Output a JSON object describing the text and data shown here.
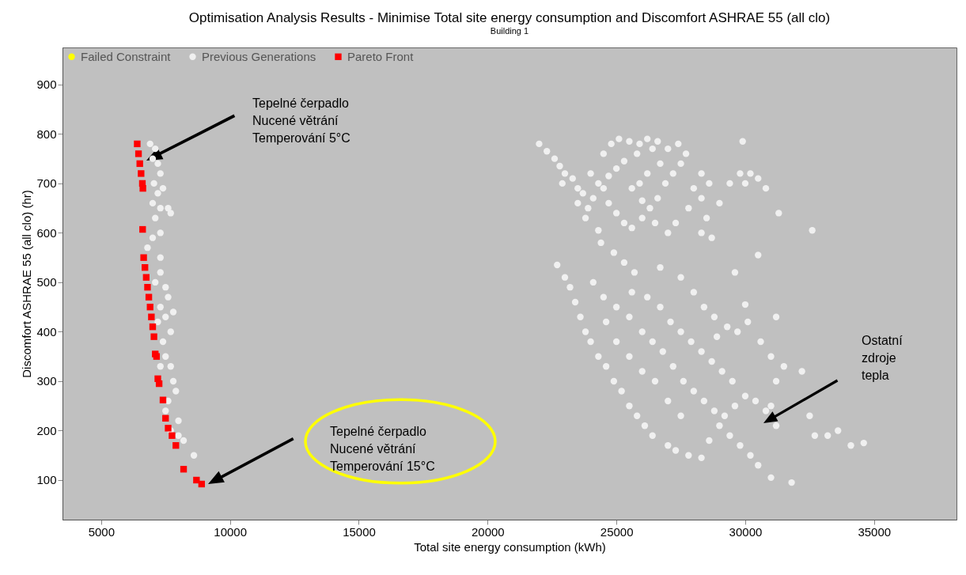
{
  "chart_data": {
    "type": "scatter",
    "title": "Optimisation Analysis Results - Minimise Total site energy consumption and Discomfort ASHRAE 55 (all clo)",
    "subtitle": "Building 1",
    "xlabel": "Total site energy consumption (kWh)",
    "ylabel": "Discomfort ASHRAE 55 (all clo) (hr)",
    "xlim": [
      3500,
      38200
    ],
    "ylim": [
      20,
      975
    ],
    "xticks": [
      5000,
      10000,
      15000,
      20000,
      25000,
      30000,
      35000
    ],
    "yticks": [
      100,
      200,
      300,
      400,
      500,
      600,
      700,
      800,
      900
    ],
    "grid": false,
    "legend": "top left",
    "series": [
      {
        "name": "Failed Constraint",
        "color": "#ffff00",
        "marker": "circle"
      },
      {
        "name": "Previous Generations",
        "color": "#f0f0f0",
        "marker": "circle",
        "x": [
          6900,
          7100,
          7000,
          7200,
          7300,
          7050,
          7200,
          7400,
          7000,
          7300,
          7600,
          7700,
          7100,
          7300,
          7000,
          6800,
          7300,
          7100,
          7300,
          7500,
          7600,
          7800,
          7500,
          7300,
          7700,
          7400,
          7500,
          7700,
          7800,
          7900,
          7600,
          7500,
          8000,
          8200,
          8000,
          8600,
          7700,
          7200,
          7300,
          22000,
          22300,
          22600,
          22800,
          23000,
          22900,
          23300,
          23500,
          23700,
          23500,
          23900,
          24100,
          24300,
          24000,
          24500,
          24800,
          25100,
          25500,
          25900,
          26200,
          26600,
          26400,
          25800,
          25300,
          25000,
          24700,
          24500,
          24700,
          25000,
          25300,
          25600,
          26000,
          26300,
          26600,
          26900,
          27200,
          27500,
          27700,
          27400,
          27000,
          26700,
          26200,
          25900,
          25600,
          26000,
          26500,
          27000,
          27300,
          27800,
          28000,
          28300,
          28600,
          28300,
          28500,
          28300,
          28700,
          29000,
          29400,
          29800,
          30000,
          30200,
          30500,
          30800,
          29900,
          31300,
          32600,
          30500,
          23800,
          24300,
          22700,
          23000,
          23200,
          23400,
          23600,
          23800,
          24000,
          24300,
          24600,
          24900,
          25200,
          25500,
          25800,
          26100,
          26400,
          27000,
          27300,
          27800,
          28300,
          28600,
          29000,
          29400,
          29800,
          30200,
          30500,
          31000,
          31800,
          24400,
          24900,
          25300,
          25700,
          24100,
          24500,
          25000,
          25500,
          26000,
          26400,
          26800,
          27200,
          27600,
          28000,
          28400,
          28800,
          29200,
          29600,
          30000,
          30400,
          30800,
          31200,
          25600,
          26200,
          26700,
          27100,
          27500,
          27900,
          28300,
          28700,
          29100,
          29500,
          26700,
          27500,
          28000,
          28400,
          28800,
          29300,
          29700,
          30100,
          30600,
          31000,
          31500,
          32200,
          32500,
          32700,
          33200,
          33600,
          34100,
          34600,
          31200,
          30000,
          31200,
          31000,
          29600,
          28900,
          26500,
          27000,
          27500,
          26000,
          25500,
          25000,
          24600
        ],
        "values": [
          780,
          770,
          750,
          740,
          720,
          700,
          680,
          690,
          660,
          650,
          650,
          640,
          630,
          600,
          590,
          570,
          550,
          500,
          520,
          490,
          470,
          440,
          430,
          450,
          400,
          380,
          350,
          330,
          300,
          280,
          260,
          240,
          220,
          180,
          190,
          150,
          200,
          420,
          330,
          780,
          765,
          750,
          735,
          720,
          700,
          710,
          690,
          680,
          660,
          650,
          670,
          700,
          720,
          760,
          780,
          790,
          785,
          780,
          790,
          785,
          770,
          760,
          745,
          730,
          715,
          690,
          660,
          640,
          620,
          610,
          630,
          650,
          670,
          700,
          720,
          740,
          760,
          780,
          770,
          740,
          720,
          700,
          690,
          665,
          620,
          600,
          620,
          650,
          690,
          720,
          700,
          670,
          630,
          600,
          590,
          660,
          700,
          720,
          700,
          720,
          710,
          690,
          785,
          640,
          605,
          555,
          630,
          605,
          535,
          510,
          490,
          460,
          430,
          400,
          380,
          350,
          330,
          300,
          280,
          250,
          230,
          210,
          190,
          170,
          160,
          150,
          145,
          180,
          210,
          190,
          170,
          150,
          130,
          105,
          95,
          580,
          560,
          540,
          520,
          500,
          470,
          450,
          430,
          400,
          380,
          360,
          330,
          300,
          280,
          260,
          240,
          230,
          250,
          270,
          260,
          240,
          210,
          480,
          470,
          450,
          420,
          400,
          380,
          360,
          340,
          320,
          300,
          530,
          510,
          480,
          450,
          430,
          410,
          400,
          420,
          380,
          350,
          330,
          320,
          230,
          190,
          190,
          200,
          170,
          175,
          300,
          455,
          430,
          250,
          520,
          390,
          300,
          260,
          230,
          320,
          350,
          380,
          420
        ]
      },
      {
        "name": "Pareto Front",
        "color": "#ff0000",
        "marker": "square",
        "x": [
          6400,
          6450,
          6500,
          6550,
          6600,
          6620,
          6610,
          6650,
          6700,
          6750,
          6800,
          6850,
          6900,
          6950,
          7000,
          7050,
          7100,
          7150,
          7200,
          7250,
          7400,
          7500,
          7600,
          7750,
          7900,
          8200,
          8700,
          8900
        ],
        "values": [
          780,
          760,
          740,
          720,
          700,
          690,
          607,
          550,
          530,
          510,
          490,
          470,
          450,
          430,
          410,
          390,
          355,
          350,
          305,
          295,
          262,
          225,
          205,
          190,
          170,
          122,
          100,
          92
        ]
      }
    ],
    "annotations": [
      "Tepelné čerpadlo\nNucené větrání\nTemperování 5°C",
      "Tepelné čerpadlo\nNucené větrání\nTemperování 15°C",
      "Ostatní\nzdroje\ntepla"
    ]
  }
}
